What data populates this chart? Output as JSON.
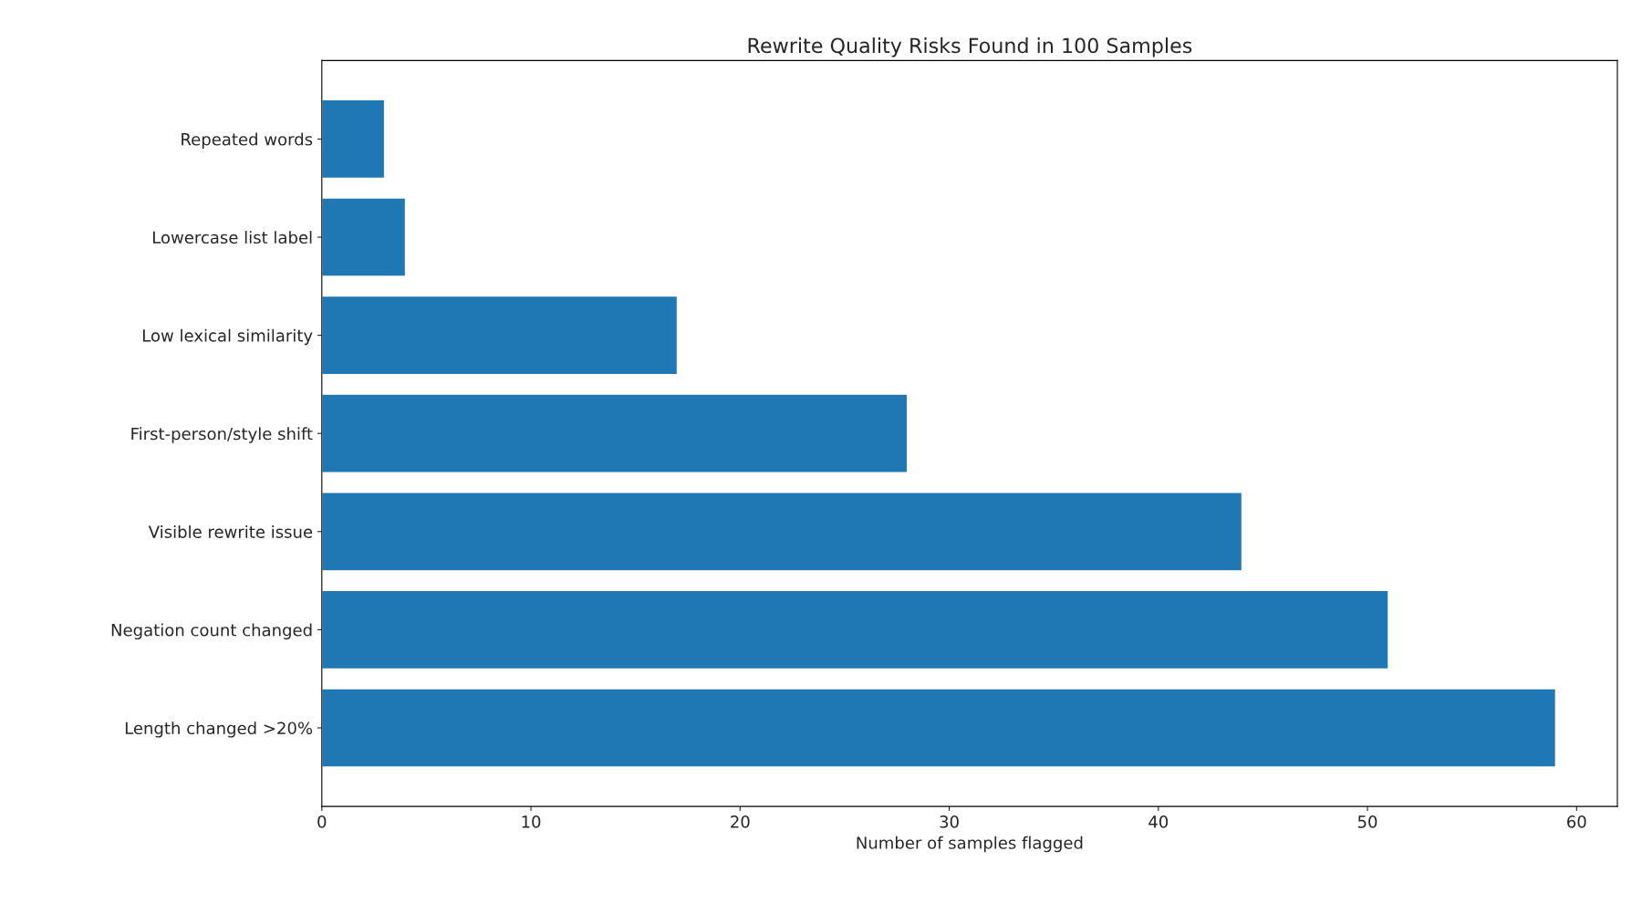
{
  "chart_data": {
    "type": "bar",
    "orientation": "horizontal",
    "title": "Rewrite Quality Risks Found in 100 Samples",
    "xlabel": "Number of samples flagged",
    "categories": [
      "Repeated words",
      "Lowercase list label",
      "Low lexical similarity",
      "First-person/style shift",
      "Visible rewrite issue",
      "Negation count changed",
      "Length changed >20%"
    ],
    "values": [
      3,
      4,
      17,
      28,
      44,
      51,
      59
    ],
    "color": "#1f77b4",
    "xlim": [
      0,
      61.95
    ],
    "xticks": [
      0,
      10,
      20,
      30,
      40,
      50,
      60
    ],
    "grid": false,
    "legend": false
  }
}
